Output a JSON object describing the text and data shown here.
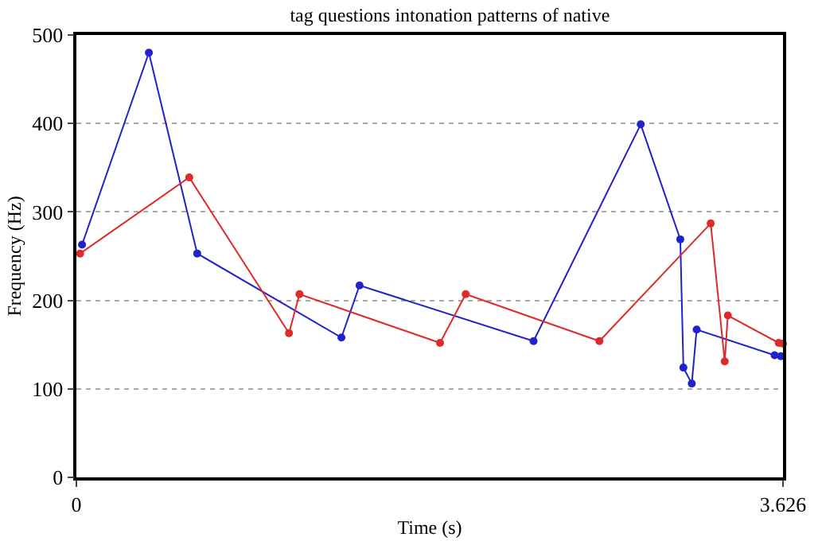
{
  "chart_data": {
    "type": "line",
    "title": "tag questions intonation patterns of native",
    "xlabel": "Time (s)",
    "ylabel": "Frequency (Hz)",
    "xlim": [
      0,
      3.626
    ],
    "xticks": [
      0,
      3.626
    ],
    "ylim": [
      0,
      500
    ],
    "yticks": [
      0,
      100,
      200,
      300,
      400,
      500
    ],
    "grid": "y",
    "marker": "circle",
    "line_style": "solid",
    "series": [
      {
        "color": "#2222cc",
        "x": [
          0.029,
          0.372,
          0.62,
          1.36,
          1.453,
          2.346,
          2.896,
          3.099,
          3.115,
          3.158,
          3.183,
          3.583,
          3.615
        ],
        "values": [
          263,
          480,
          253,
          158,
          217,
          154,
          399,
          269,
          124,
          106,
          167,
          138,
          137
        ]
      },
      {
        "color": "#dd2a2a",
        "x": [
          0.019,
          0.579,
          1.091,
          1.145,
          1.866,
          1.998,
          2.684,
          3.255,
          3.327,
          3.343,
          3.604,
          3.626
        ],
        "values": [
          253,
          339,
          163,
          207,
          152,
          207,
          154,
          287,
          131,
          183,
          152,
          151
        ]
      }
    ]
  }
}
